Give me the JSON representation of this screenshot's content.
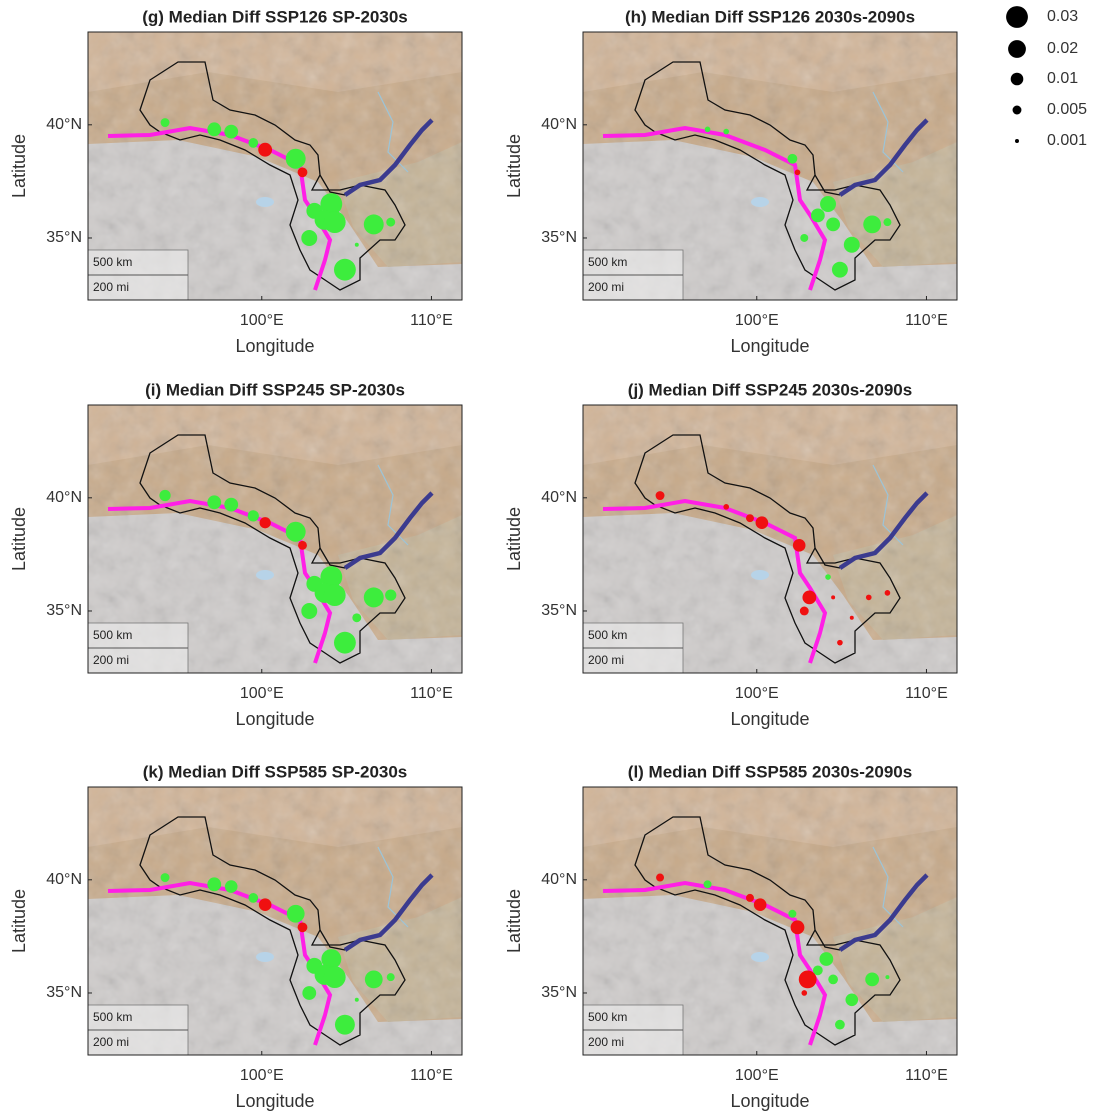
{
  "axes": {
    "xlabel": "Longitude",
    "ylabel": "Latitude",
    "xlim": [
      89.76,
      111.8
    ],
    "ylim": [
      32.26,
      44.1
    ],
    "xticks": [
      {
        "value": 100,
        "label": "100°E"
      },
      {
        "value": 110,
        "label": "110°E"
      }
    ],
    "yticks": [
      {
        "value": 35,
        "label": "35°N"
      },
      {
        "value": 40,
        "label": "40°N"
      }
    ]
  },
  "scale_bar": {
    "labels": [
      "500 km",
      "200 mi"
    ]
  },
  "legend": {
    "items": [
      0.03,
      0.02,
      0.01,
      0.005,
      0.001
    ],
    "color": "#000000"
  },
  "panels": [
    {
      "title": "(g) Median Diff SSP126 SP-2030s",
      "points": [
        {
          "lon": 94.3,
          "lat": 40.1,
          "value": 0.005,
          "color": "#3ded3d"
        },
        {
          "lon": 97.2,
          "lat": 39.8,
          "value": 0.012,
          "color": "#3ded3d"
        },
        {
          "lon": 98.2,
          "lat": 39.7,
          "value": 0.012,
          "color": "#3ded3d"
        },
        {
          "lon": 99.5,
          "lat": 39.2,
          "value": 0.006,
          "color": "#3ded3d"
        },
        {
          "lon": 100.2,
          "lat": 38.9,
          "value": 0.012,
          "color": "#f01010"
        },
        {
          "lon": 102.0,
          "lat": 38.5,
          "value": 0.025,
          "color": "#3ded3d"
        },
        {
          "lon": 102.4,
          "lat": 37.9,
          "value": 0.006,
          "color": "#f01010"
        },
        {
          "lon": 104.1,
          "lat": 36.5,
          "value": 0.03,
          "color": "#3ded3d"
        },
        {
          "lon": 103.1,
          "lat": 36.2,
          "value": 0.016,
          "color": "#3ded3d"
        },
        {
          "lon": 103.7,
          "lat": 35.8,
          "value": 0.025,
          "color": "#3ded3d"
        },
        {
          "lon": 104.3,
          "lat": 35.7,
          "value": 0.03,
          "color": "#3ded3d"
        },
        {
          "lon": 102.8,
          "lat": 35.0,
          "value": 0.016,
          "color": "#3ded3d"
        },
        {
          "lon": 106.6,
          "lat": 35.6,
          "value": 0.025,
          "color": "#3ded3d"
        },
        {
          "lon": 107.6,
          "lat": 35.7,
          "value": 0.005,
          "color": "#3ded3d"
        },
        {
          "lon": 105.6,
          "lat": 34.7,
          "value": 0.001,
          "color": "#3ded3d"
        },
        {
          "lon": 104.9,
          "lat": 33.6,
          "value": 0.03,
          "color": "#3ded3d"
        }
      ]
    },
    {
      "title": "(h) Median Diff SSP126 2030s-2090s",
      "points": [
        {
          "lon": 97.1,
          "lat": 39.8,
          "value": 0.002,
          "color": "#3ded3d"
        },
        {
          "lon": 98.2,
          "lat": 39.7,
          "value": 0.002,
          "color": "#3ded3d"
        },
        {
          "lon": 102.1,
          "lat": 38.5,
          "value": 0.006,
          "color": "#3ded3d"
        },
        {
          "lon": 102.4,
          "lat": 37.9,
          "value": 0.002,
          "color": "#f01010"
        },
        {
          "lon": 104.2,
          "lat": 36.5,
          "value": 0.016,
          "color": "#3ded3d"
        },
        {
          "lon": 103.6,
          "lat": 36.0,
          "value": 0.012,
          "color": "#3ded3d"
        },
        {
          "lon": 104.5,
          "lat": 35.6,
          "value": 0.012,
          "color": "#3ded3d"
        },
        {
          "lon": 102.8,
          "lat": 35.0,
          "value": 0.004,
          "color": "#3ded3d"
        },
        {
          "lon": 106.8,
          "lat": 35.6,
          "value": 0.02,
          "color": "#3ded3d"
        },
        {
          "lon": 107.7,
          "lat": 35.7,
          "value": 0.004,
          "color": "#3ded3d"
        },
        {
          "lon": 105.6,
          "lat": 34.7,
          "value": 0.016,
          "color": "#3ded3d"
        },
        {
          "lon": 104.9,
          "lat": 33.6,
          "value": 0.016,
          "color": "#3ded3d"
        }
      ]
    },
    {
      "title": "(i) Median Diff SSP245 SP-2030s",
      "points": [
        {
          "lon": 94.3,
          "lat": 40.1,
          "value": 0.008,
          "color": "#3ded3d"
        },
        {
          "lon": 97.2,
          "lat": 39.8,
          "value": 0.012,
          "color": "#3ded3d"
        },
        {
          "lon": 98.2,
          "lat": 39.7,
          "value": 0.012,
          "color": "#3ded3d"
        },
        {
          "lon": 99.5,
          "lat": 39.2,
          "value": 0.008,
          "color": "#3ded3d"
        },
        {
          "lon": 100.2,
          "lat": 38.9,
          "value": 0.008,
          "color": "#f01010"
        },
        {
          "lon": 102.0,
          "lat": 38.5,
          "value": 0.025,
          "color": "#3ded3d"
        },
        {
          "lon": 102.4,
          "lat": 37.9,
          "value": 0.005,
          "color": "#f01010"
        },
        {
          "lon": 104.1,
          "lat": 36.5,
          "value": 0.03,
          "color": "#3ded3d"
        },
        {
          "lon": 103.1,
          "lat": 36.2,
          "value": 0.016,
          "color": "#3ded3d"
        },
        {
          "lon": 103.7,
          "lat": 35.8,
          "value": 0.025,
          "color": "#3ded3d"
        },
        {
          "lon": 104.3,
          "lat": 35.7,
          "value": 0.03,
          "color": "#3ded3d"
        },
        {
          "lon": 102.8,
          "lat": 35.0,
          "value": 0.016,
          "color": "#3ded3d"
        },
        {
          "lon": 106.6,
          "lat": 35.6,
          "value": 0.025,
          "color": "#3ded3d"
        },
        {
          "lon": 107.6,
          "lat": 35.7,
          "value": 0.008,
          "color": "#3ded3d"
        },
        {
          "lon": 105.6,
          "lat": 34.7,
          "value": 0.005,
          "color": "#3ded3d"
        },
        {
          "lon": 104.9,
          "lat": 33.6,
          "value": 0.03,
          "color": "#3ded3d"
        }
      ]
    },
    {
      "title": "(j) Median Diff SSP245 2030s-2090s",
      "points": [
        {
          "lon": 94.3,
          "lat": 40.1,
          "value": 0.005,
          "color": "#f01010"
        },
        {
          "lon": 98.2,
          "lat": 39.6,
          "value": 0.002,
          "color": "#f01010"
        },
        {
          "lon": 99.6,
          "lat": 39.1,
          "value": 0.004,
          "color": "#f01010"
        },
        {
          "lon": 100.3,
          "lat": 38.9,
          "value": 0.01,
          "color": "#f01010"
        },
        {
          "lon": 102.5,
          "lat": 37.9,
          "value": 0.01,
          "color": "#f01010"
        },
        {
          "lon": 104.2,
          "lat": 36.5,
          "value": 0.002,
          "color": "#3ded3d"
        },
        {
          "lon": 103.1,
          "lat": 35.6,
          "value": 0.012,
          "color": "#f01010"
        },
        {
          "lon": 102.8,
          "lat": 35.0,
          "value": 0.005,
          "color": "#f01010"
        },
        {
          "lon": 104.5,
          "lat": 35.6,
          "value": 0.001,
          "color": "#f01010"
        },
        {
          "lon": 106.6,
          "lat": 35.6,
          "value": 0.002,
          "color": "#f01010"
        },
        {
          "lon": 107.7,
          "lat": 35.8,
          "value": 0.002,
          "color": "#f01010"
        },
        {
          "lon": 105.6,
          "lat": 34.7,
          "value": 0.001,
          "color": "#f01010"
        },
        {
          "lon": 104.9,
          "lat": 33.6,
          "value": 0.002,
          "color": "#f01010"
        }
      ]
    },
    {
      "title": "(k) Median Diff SSP585 SP-2030s",
      "points": [
        {
          "lon": 94.3,
          "lat": 40.1,
          "value": 0.005,
          "color": "#3ded3d"
        },
        {
          "lon": 97.2,
          "lat": 39.8,
          "value": 0.012,
          "color": "#3ded3d"
        },
        {
          "lon": 98.2,
          "lat": 39.7,
          "value": 0.01,
          "color": "#3ded3d"
        },
        {
          "lon": 99.5,
          "lat": 39.2,
          "value": 0.006,
          "color": "#3ded3d"
        },
        {
          "lon": 100.2,
          "lat": 38.9,
          "value": 0.01,
          "color": "#f01010"
        },
        {
          "lon": 102.0,
          "lat": 38.5,
          "value": 0.02,
          "color": "#3ded3d"
        },
        {
          "lon": 102.4,
          "lat": 37.9,
          "value": 0.006,
          "color": "#f01010"
        },
        {
          "lon": 104.1,
          "lat": 36.5,
          "value": 0.025,
          "color": "#3ded3d"
        },
        {
          "lon": 103.1,
          "lat": 36.2,
          "value": 0.016,
          "color": "#3ded3d"
        },
        {
          "lon": 103.7,
          "lat": 35.8,
          "value": 0.025,
          "color": "#3ded3d"
        },
        {
          "lon": 104.3,
          "lat": 35.7,
          "value": 0.03,
          "color": "#3ded3d"
        },
        {
          "lon": 102.8,
          "lat": 35.0,
          "value": 0.012,
          "color": "#3ded3d"
        },
        {
          "lon": 106.6,
          "lat": 35.6,
          "value": 0.02,
          "color": "#3ded3d"
        },
        {
          "lon": 107.6,
          "lat": 35.7,
          "value": 0.004,
          "color": "#3ded3d"
        },
        {
          "lon": 105.6,
          "lat": 34.7,
          "value": 0.001,
          "color": "#3ded3d"
        },
        {
          "lon": 104.9,
          "lat": 33.6,
          "value": 0.025,
          "color": "#3ded3d"
        }
      ]
    },
    {
      "title": "(l) Median Diff SSP585 2030s-2090s",
      "points": [
        {
          "lon": 94.3,
          "lat": 40.1,
          "value": 0.004,
          "color": "#f01010"
        },
        {
          "lon": 97.1,
          "lat": 39.8,
          "value": 0.004,
          "color": "#3ded3d"
        },
        {
          "lon": 99.6,
          "lat": 39.2,
          "value": 0.004,
          "color": "#f01010"
        },
        {
          "lon": 100.2,
          "lat": 38.9,
          "value": 0.01,
          "color": "#f01010"
        },
        {
          "lon": 102.1,
          "lat": 38.5,
          "value": 0.004,
          "color": "#3ded3d"
        },
        {
          "lon": 102.4,
          "lat": 37.9,
          "value": 0.012,
          "color": "#f01010"
        },
        {
          "lon": 104.1,
          "lat": 36.5,
          "value": 0.012,
          "color": "#3ded3d"
        },
        {
          "lon": 103.6,
          "lat": 36.0,
          "value": 0.006,
          "color": "#3ded3d"
        },
        {
          "lon": 103.0,
          "lat": 35.6,
          "value": 0.02,
          "color": "#f01010"
        },
        {
          "lon": 104.5,
          "lat": 35.6,
          "value": 0.006,
          "color": "#3ded3d"
        },
        {
          "lon": 102.8,
          "lat": 35.0,
          "value": 0.002,
          "color": "#f01010"
        },
        {
          "lon": 106.8,
          "lat": 35.6,
          "value": 0.012,
          "color": "#3ded3d"
        },
        {
          "lon": 107.7,
          "lat": 35.7,
          "value": 0.001,
          "color": "#3ded3d"
        },
        {
          "lon": 105.6,
          "lat": 34.7,
          "value": 0.01,
          "color": "#3ded3d"
        },
        {
          "lon": 104.9,
          "lat": 33.6,
          "value": 0.006,
          "color": "#3ded3d"
        }
      ]
    }
  ]
}
